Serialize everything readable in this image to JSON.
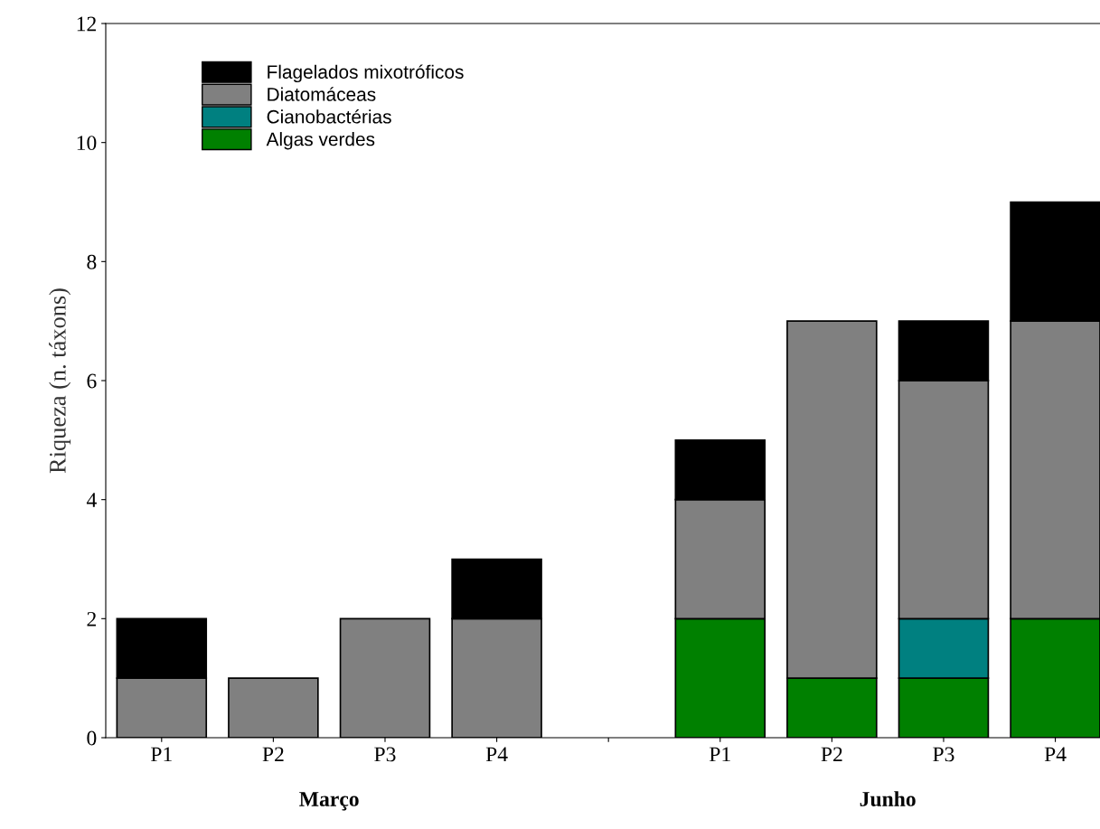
{
  "chart_data": {
    "type": "bar",
    "stacked": true,
    "ylabel": "Riqueza (n. táxons)",
    "categories": [
      "P1",
      "P2",
      "P3",
      "P4",
      null,
      "P1",
      "P2",
      "P3",
      "P4"
    ],
    "series": [
      {
        "name": "Algas verdes",
        "color": "#008000",
        "values": [
          null,
          null,
          null,
          null,
          null,
          2,
          1,
          1,
          2
        ]
      },
      {
        "name": "Cianobactérias",
        "color": "#008080",
        "values": [
          null,
          null,
          null,
          null,
          null,
          null,
          null,
          1,
          null
        ]
      },
      {
        "name": "Diatomáceas",
        "color": "#808080",
        "values": [
          1,
          1,
          2,
          2,
          null,
          2,
          6,
          4,
          5
        ]
      },
      {
        "name": "Flagelados mixotróficos",
        "color": "#000000",
        "values": [
          1,
          null,
          null,
          1,
          null,
          1,
          null,
          1,
          2
        ]
      }
    ],
    "annotations": [
      "Março",
      "Junho"
    ],
    "ylim": [
      0,
      12
    ],
    "yticks": [
      0,
      2,
      4,
      6,
      8,
      10,
      12
    ],
    "grid": false,
    "legend": "top left"
  }
}
